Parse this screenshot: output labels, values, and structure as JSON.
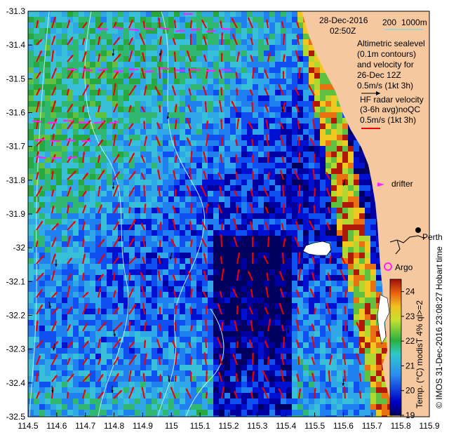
{
  "header": {
    "date": "28-Dec-2016",
    "time": "02:50Z"
  },
  "scale_bar": {
    "labels": [
      "200",
      "1000m"
    ],
    "color": "#7ad7e0"
  },
  "legend": {
    "altimetry": [
      "Altimetric sealevel",
      "(0.1m contours)",
      "and velocity for",
      "26-Dec 12Z",
      "0.5m/s (1kt 3h)"
    ],
    "hf_radar": [
      "HF radar velocity",
      "(3-6h avg)noQC",
      "0.5m/s (1kt 3h)"
    ],
    "drifter": "drifter",
    "argo": "Argo",
    "city": "Perth"
  },
  "colorbar": {
    "ticks": [
      "19",
      "20",
      "21",
      "22",
      "23",
      "24"
    ],
    "label": "Temp. (°C) modisT 4% ql>=2",
    "range": [
      19,
      24.5
    ]
  },
  "credit": "© IMOS 31-Dec-2016 23:08:27 Hobart time",
  "axes": {
    "x_ticks": [
      "114.5",
      "114.6",
      "114.7",
      "114.8",
      "114.9",
      "115",
      "115.1",
      "115.2",
      "115.3",
      "115.4",
      "115.5",
      "115.6",
      "115.7",
      "115.8",
      "115.9"
    ],
    "y_ticks": [
      "-31.3",
      "-31.4",
      "-31.5",
      "-31.6",
      "-31.7",
      "-31.8",
      "-31.9",
      "-32",
      "-32.1",
      "-32.2",
      "-32.3",
      "-32.4",
      "-32.5"
    ],
    "x_range": [
      114.5,
      115.9
    ],
    "y_range": [
      -32.5,
      -31.3
    ]
  },
  "colors": {
    "land": "#f5c8a0",
    "hf_arrow": "#ee0000",
    "drifter": "#ff22ff",
    "argo": "#ff22ff",
    "contour": "#bfeef5",
    "island": "#ffffff"
  }
}
